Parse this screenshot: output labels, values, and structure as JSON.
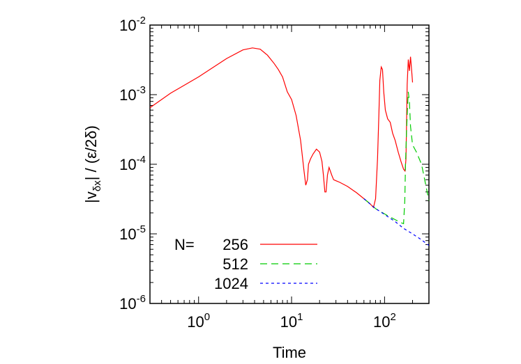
{
  "chart_data": {
    "type": "line",
    "title": "",
    "xlabel": "Time",
    "ylabel": {
      "open": "|v",
      "sub": "δx",
      "close": "| / (ε/2δ)"
    },
    "xscale": "log",
    "yscale": "log",
    "xlim": [
      0.3,
      300
    ],
    "ylim": [
      1e-06,
      0.01
    ],
    "x_ticks": [
      {
        "value": 1,
        "base": "10",
        "exp": "0"
      },
      {
        "value": 10,
        "base": "10",
        "exp": "1"
      },
      {
        "value": 100,
        "base": "10",
        "exp": "2"
      }
    ],
    "y_ticks": [
      {
        "value": 1e-06,
        "base": "10",
        "exp": "-6"
      },
      {
        "value": 1e-05,
        "base": "10",
        "exp": "-5"
      },
      {
        "value": 0.0001,
        "base": "10",
        "exp": "-4"
      },
      {
        "value": 0.001,
        "base": "10",
        "exp": "-3"
      },
      {
        "value": 0.01,
        "base": "10",
        "exp": "-2"
      }
    ],
    "grid": false,
    "legend": {
      "position": "bottom-left",
      "prefix": "N=",
      "entries": [
        "256",
        "512",
        "1024"
      ]
    },
    "series": [
      {
        "name": "256",
        "color": "#ff0000",
        "dash": "solid",
        "x": [
          0.3,
          0.5,
          1.0,
          2.0,
          3.0,
          3.8,
          4.6,
          5.5,
          6.5,
          7.2,
          8.0,
          9.0,
          10.0,
          11.2,
          12.5,
          13.6,
          14.2,
          14.8,
          15.2,
          16.0,
          17.0,
          18.5,
          20.0,
          21.2,
          22.0,
          22.8,
          23.5,
          24.3,
          25.3,
          27.0,
          28.3,
          30.0,
          33.0,
          40.0,
          50.0,
          60.0,
          70.0,
          76.0,
          80.0,
          84.0,
          87.0,
          89.0,
          92.0,
          95.0,
          98.0,
          102.0,
          108.0,
          115.0,
          122.0,
          130.0,
          140.0,
          150.0,
          160.0,
          166.0,
          170.0,
          175.0,
          180.0,
          185.0,
          190.0,
          195.0,
          200.0
        ],
        "y": [
          0.00065,
          0.00105,
          0.0018,
          0.0033,
          0.0044,
          0.0047,
          0.0045,
          0.0037,
          0.0028,
          0.0023,
          0.0018,
          0.0011,
          0.00085,
          0.0005,
          0.00022,
          8e-05,
          5e-05,
          6e-05,
          0.0001,
          0.00012,
          0.00014,
          0.000165,
          0.00015,
          0.00011,
          7e-05,
          4e-05,
          4e-05,
          7e-05,
          9e-05,
          7e-05,
          6e-05,
          5.8e-05,
          5.5e-05,
          4.8e-05,
          3.9e-05,
          3.2e-05,
          2.7e-05,
          2.4e-05,
          3.2e-05,
          0.00012,
          0.00055,
          0.0016,
          0.0025,
          0.0023,
          0.0011,
          0.0006,
          0.00045,
          0.0004,
          0.00028,
          0.00022,
          0.00015,
          0.00011,
          8.5e-05,
          8e-05,
          0.00012,
          0.0014,
          0.0032,
          0.0022,
          0.0035,
          0.0023,
          0.0015
        ]
      },
      {
        "name": "512",
        "color": "#00cc00",
        "dash": "10,6",
        "x": [
          60.0,
          70.0,
          80.0,
          90.0,
          110.0,
          130.0,
          150.0,
          160.0,
          165.0,
          168.0,
          172.0,
          176.0,
          180.0,
          185.0,
          190.0,
          200.0,
          220.0,
          250.0,
          300.0
        ],
        "y": [
          3.2e-05,
          2.7e-05,
          2.3e-05,
          2.1e-05,
          1.8e-05,
          1.6e-05,
          1.45e-05,
          1.4e-05,
          3e-05,
          0.0001,
          0.00028,
          0.0006,
          0.0011,
          0.0008,
          0.00035,
          0.00019,
          0.00015,
          0.0001,
          3e-05
        ]
      },
      {
        "name": "1024",
        "color": "#0000ff",
        "dash": "4,4",
        "x": [
          60.0,
          80.0,
          100.0,
          130.0,
          160.0,
          200.0,
          250.0,
          300.0
        ],
        "y": [
          3.2e-05,
          2.3e-05,
          1.9e-05,
          1.5e-05,
          1.2e-05,
          1e-05,
          8.2e-06,
          6.8e-06
        ]
      }
    ]
  }
}
